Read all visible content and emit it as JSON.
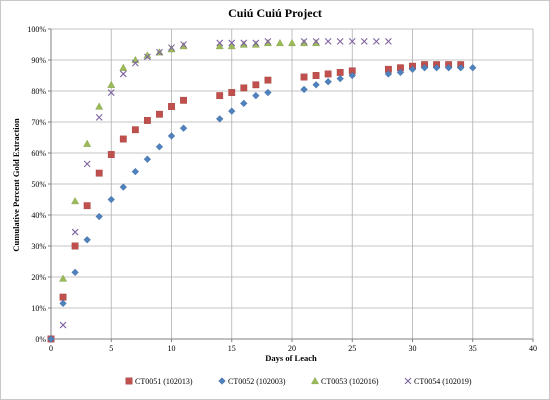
{
  "chart_data": {
    "type": "scatter",
    "title": "Cuiú Cuiú Project",
    "xlabel": "Days of Leach",
    "ylabel": "Cumulative Percent Gold Extraction",
    "xlim": [
      0,
      40
    ],
    "ylim": [
      0,
      100
    ],
    "x_ticks": [
      "0",
      "5",
      "10",
      "15",
      "20",
      "25",
      "30",
      "35",
      "40"
    ],
    "y_ticks": [
      "0%",
      "10%",
      "20%",
      "30%",
      "40%",
      "50%",
      "60%",
      "70%",
      "80%",
      "90%",
      "100%"
    ],
    "grid": true,
    "legend_position": "bottom",
    "series": [
      {
        "name": "CT0051 (102013)",
        "marker": "square",
        "color": "#c0504d",
        "points": [
          [
            0,
            0
          ],
          [
            1,
            13.5
          ],
          [
            2,
            30
          ],
          [
            3,
            43
          ],
          [
            4,
            53.5
          ],
          [
            5,
            59.5
          ],
          [
            6,
            64.5
          ],
          [
            7,
            67.5
          ],
          [
            8,
            70.5
          ],
          [
            9,
            72.5
          ],
          [
            10,
            75
          ],
          [
            11,
            77
          ],
          [
            14,
            78.5
          ],
          [
            15,
            79.5
          ],
          [
            16,
            81
          ],
          [
            17,
            82
          ],
          [
            18,
            83.5
          ],
          [
            21,
            84.5
          ],
          [
            22,
            85
          ],
          [
            23,
            85.5
          ],
          [
            24,
            86
          ],
          [
            25,
            86.5
          ],
          [
            28,
            87
          ],
          [
            29,
            87.5
          ],
          [
            30,
            88
          ],
          [
            31,
            88.5
          ],
          [
            32,
            88.5
          ],
          [
            33,
            88.5
          ],
          [
            34,
            88.5
          ]
        ]
      },
      {
        "name": "CT0052 (102003)",
        "marker": "diamond",
        "color": "#4f81bd",
        "points": [
          [
            0,
            0
          ],
          [
            1,
            11.5
          ],
          [
            2,
            21.5
          ],
          [
            3,
            32
          ],
          [
            4,
            39.5
          ],
          [
            5,
            45
          ],
          [
            6,
            49
          ],
          [
            7,
            54
          ],
          [
            8,
            58
          ],
          [
            9,
            62
          ],
          [
            10,
            65.5
          ],
          [
            11,
            68
          ],
          [
            14,
            71
          ],
          [
            15,
            73.5
          ],
          [
            16,
            76
          ],
          [
            17,
            78.5
          ],
          [
            18,
            79.5
          ],
          [
            21,
            80.5
          ],
          [
            22,
            82
          ],
          [
            23,
            83
          ],
          [
            24,
            84
          ],
          [
            25,
            85
          ],
          [
            28,
            85.5
          ],
          [
            29,
            86
          ],
          [
            30,
            87
          ],
          [
            31,
            87.5
          ],
          [
            32,
            87.5
          ],
          [
            33,
            87.5
          ],
          [
            34,
            87.5
          ],
          [
            35,
            87.5
          ]
        ]
      },
      {
        "name": "CT0053 (102016)",
        "marker": "triangle",
        "color": "#9bbb59",
        "points": [
          [
            1,
            19.5
          ],
          [
            2,
            44.5
          ],
          [
            3,
            63
          ],
          [
            4,
            75
          ],
          [
            5,
            82
          ],
          [
            6,
            87.5
          ],
          [
            7,
            90
          ],
          [
            8,
            91.5
          ],
          [
            9,
            92.5
          ],
          [
            10,
            93.5
          ],
          [
            11,
            94.5
          ],
          [
            14,
            94.5
          ],
          [
            15,
            94.5
          ],
          [
            16,
            95
          ],
          [
            17,
            95
          ],
          [
            18,
            95.5
          ],
          [
            19,
            95.5
          ],
          [
            20,
            95.5
          ],
          [
            21,
            95.5
          ],
          [
            22,
            95.5
          ]
        ]
      },
      {
        "name": "CT0054 (102019)",
        "marker": "x",
        "color": "#8064a2",
        "points": [
          [
            1,
            4.5
          ],
          [
            2,
            34.5
          ],
          [
            3,
            56.5
          ],
          [
            4,
            71.5
          ],
          [
            5,
            79.5
          ],
          [
            6,
            85.5
          ],
          [
            7,
            89
          ],
          [
            8,
            91
          ],
          [
            9,
            92.5
          ],
          [
            10,
            94
          ],
          [
            11,
            95
          ],
          [
            14,
            95.5
          ],
          [
            15,
            95.5
          ],
          [
            16,
            95.5
          ],
          [
            17,
            95.5
          ],
          [
            18,
            96
          ],
          [
            21,
            96
          ],
          [
            22,
            96
          ],
          [
            23,
            96
          ],
          [
            24,
            96
          ],
          [
            25,
            96
          ],
          [
            26,
            96
          ],
          [
            27,
            96
          ],
          [
            28,
            96
          ]
        ]
      }
    ]
  }
}
